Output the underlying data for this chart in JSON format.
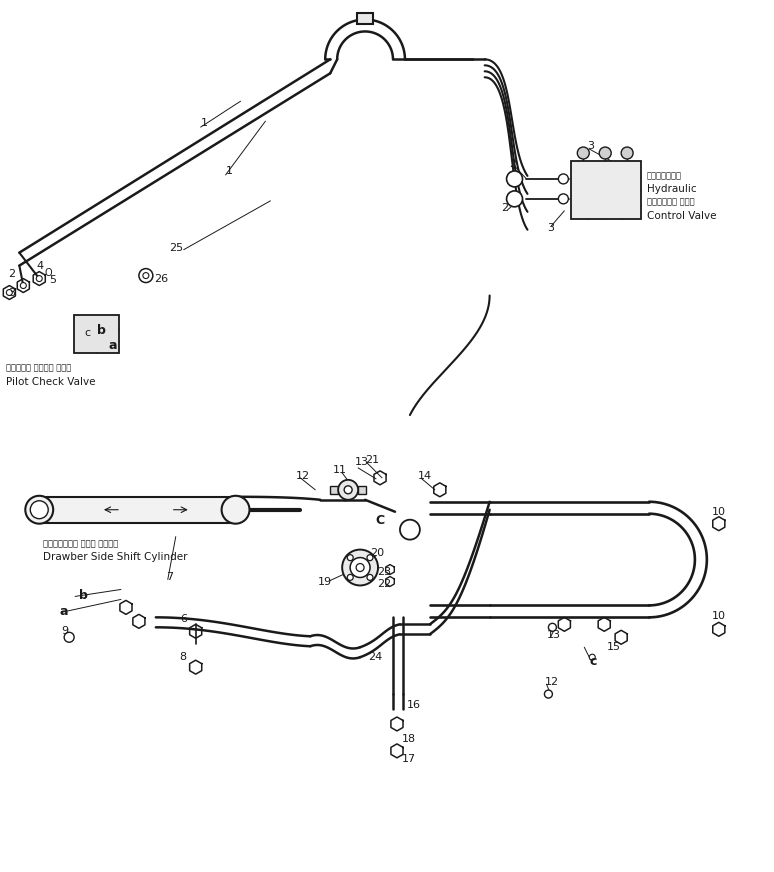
{
  "bg_color": "#ffffff",
  "lc": "#1a1a1a",
  "fig_width": 7.74,
  "fig_height": 8.72,
  "dpi": 100,
  "labels": {
    "hydraulic_jp": "ハイドロリック",
    "hydraulic_en": "Hydraulic",
    "control_jp": "コントロール バルブ",
    "control_en": "Control Valve",
    "pilot_jp": "パイロット チェック バルブ",
    "pilot_en": "Pilot Check Valve",
    "drawber_jp": "ドローバサイド シフト シリンダ",
    "drawber_en": "Drawber Side Shift Cylinder"
  }
}
